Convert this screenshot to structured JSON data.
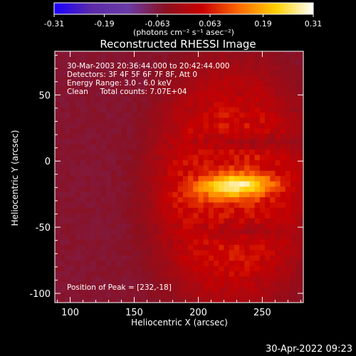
{
  "chart_data": {
    "type": "heatmap",
    "title": "Reconstructed RHESSI Image",
    "xlabel": "Heliocentric X (arcsec)",
    "ylabel": "Heliocentric Y (arcsec)",
    "xlim": [
      88,
      282
    ],
    "ylim": [
      -107,
      83
    ],
    "x_ticks": [
      100,
      150,
      200,
      250
    ],
    "y_ticks": [
      -100,
      -50,
      0,
      50
    ],
    "colorbar": {
      "range": [
        -0.31,
        0.31
      ],
      "tick_values": [
        -0.31,
        -0.19,
        -0.063,
        0.063,
        0.19,
        0.31
      ],
      "tick_labels": [
        "-0.31",
        "-0.19",
        "-0.063",
        "0.063",
        "0.19",
        "0.31"
      ],
      "units_label": "(photons cm⁻² s⁻¹ asec⁻²)",
      "stops": [
        "#1a00ff",
        "#5b2aa8",
        "#6a3aa6",
        "#8a1020",
        "#c80000",
        "#ff6a00",
        "#ffd000",
        "#ffffff"
      ]
    },
    "annotations": [
      "30-Mar-2003 20:36:44.000 to 20:42:44.000",
      "Detectors: 3F 4F 5F 6F 7F 8F, Att 0",
      "Energy Range: 3.0 - 6.0 keV",
      "Clean     Total counts: 7.07E+04"
    ],
    "peak_label": "Position of Peak = [232,-18]",
    "peak": {
      "x": 232,
      "y": -18,
      "value": 0.31
    },
    "grid": false,
    "legend": "colorbar-top"
  },
  "footer": {
    "timestamp": "30-Apr-2022 09:23"
  }
}
